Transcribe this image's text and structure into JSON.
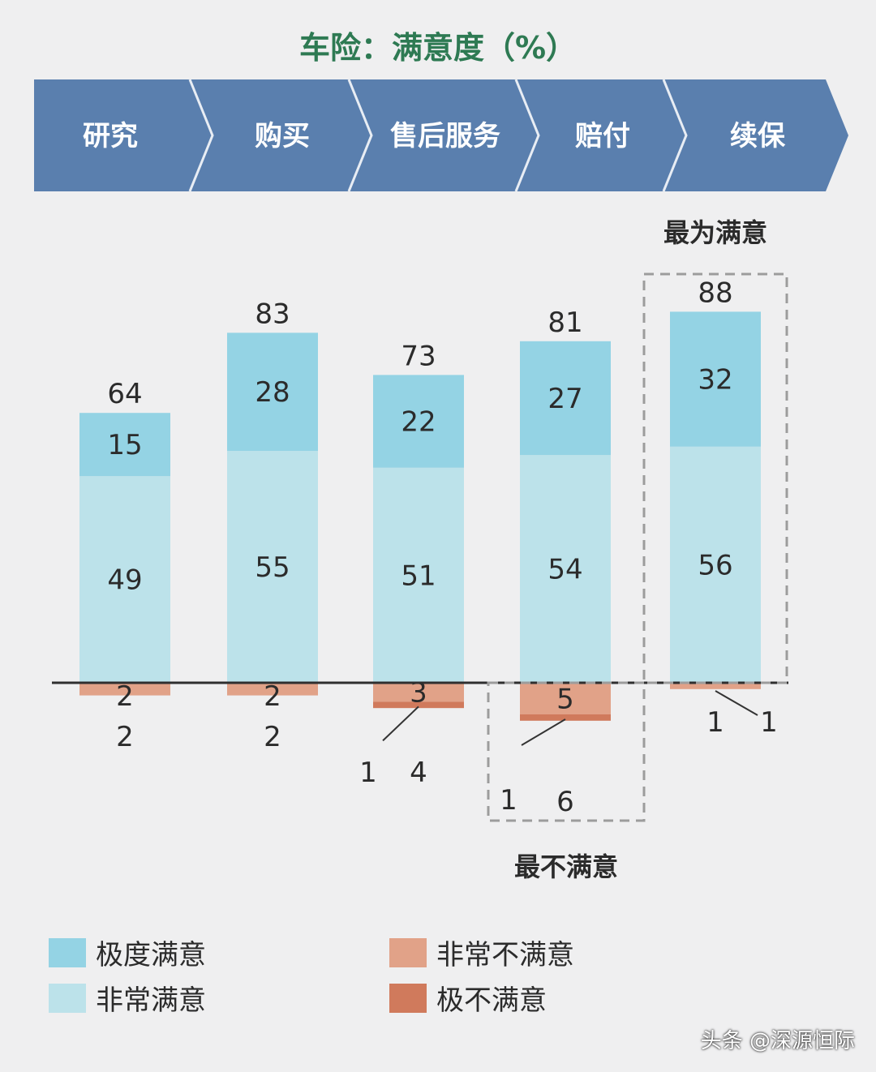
{
  "title": "车险：满意度（%）",
  "stages": [
    "研究",
    "购买",
    "售后服务",
    "赔付",
    "续保"
  ],
  "annotations": {
    "most_satisfied": "最为满意",
    "least_satisfied": "最不满意"
  },
  "legend": {
    "very_satisfied": "极度满意",
    "quite_satisfied": "非常满意",
    "quite_dissatisfied": "非常不满意",
    "very_dissatisfied": "极不满意"
  },
  "watermark": "头条 @深源恒际",
  "colors": {
    "very_satisfied": "#94d3e4",
    "quite_satisfied": "#bce2ea",
    "quite_dissatisfied": "#e1a288",
    "very_dissatisfied": "#d07a5c",
    "banner": "#5a7fae",
    "title": "#2e7a53"
  },
  "chart_data": {
    "type": "bar",
    "stacked": true,
    "categories": [
      "研究",
      "购买",
      "售后服务",
      "赔付",
      "续保"
    ],
    "series": [
      {
        "name": "极度满意",
        "values": [
          15,
          28,
          22,
          27,
          32
        ]
      },
      {
        "name": "非常满意",
        "values": [
          49,
          55,
          51,
          54,
          56
        ]
      },
      {
        "name": "非常不满意",
        "values": [
          2,
          2,
          3,
          5,
          1
        ]
      },
      {
        "name": "极不满意",
        "values": [
          0,
          0,
          1,
          1,
          0
        ]
      }
    ],
    "satisfied_total": [
      64,
      83,
      73,
      81,
      88
    ],
    "dissatisfied_total": [
      2,
      2,
      4,
      6,
      1
    ],
    "title": "车险：满意度（%）",
    "legend_position": "bottom"
  }
}
